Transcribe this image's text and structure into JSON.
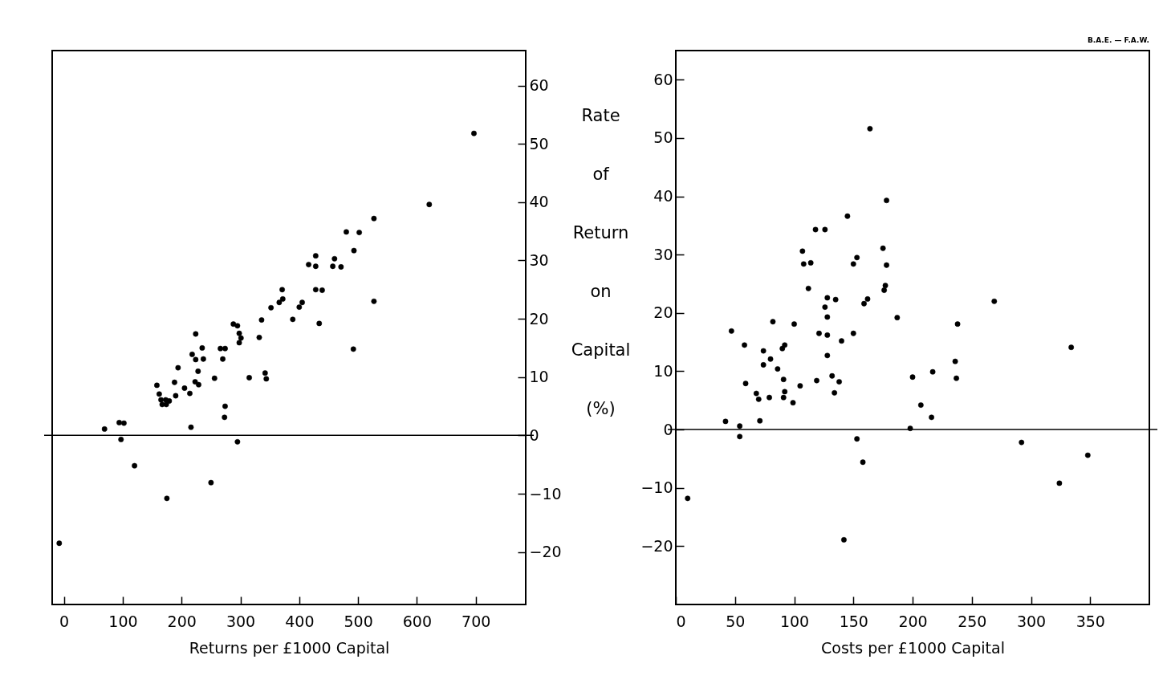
{
  "chart_data": [
    {
      "type": "scatter",
      "xlabel": "Returns per £1000 Capital",
      "ylabel": "Rate of Return on Capital (%)",
      "color": "#000000",
      "marker": "circle",
      "grid": false,
      "x": [
        -8,
        69,
        94,
        102,
        97,
        120,
        175,
        250,
        216,
        158,
        162,
        165,
        173,
        179,
        167,
        174,
        188,
        190,
        194,
        205,
        214,
        223,
        229,
        228,
        224,
        218,
        237,
        235,
        224,
        256,
        273,
        274,
        270,
        266,
        274,
        295,
        288,
        295,
        298,
        301,
        298,
        315,
        332,
        336,
        342,
        344,
        352,
        366,
        371,
        372,
        389,
        400,
        405,
        416,
        428,
        428,
        428,
        439,
        434,
        457,
        460,
        471,
        480,
        502,
        493,
        492,
        527,
        527,
        621,
        697
      ],
      "values": [
        -18.5,
        1.1,
        2.2,
        2.1,
        -0.7,
        -5.2,
        -10.8,
        -8.1,
        1.4,
        8.6,
        7.1,
        6.1,
        6.1,
        5.9,
        5.3,
        5.3,
        9.1,
        6.8,
        11.6,
        8.1,
        7.2,
        9.2,
        8.7,
        11.0,
        13.0,
        13.9,
        13.1,
        15.0,
        17.4,
        9.8,
        3.1,
        5.0,
        13.1,
        14.9,
        14.9,
        -1.1,
        19.1,
        18.8,
        17.5,
        16.7,
        15.9,
        9.9,
        16.8,
        19.8,
        10.7,
        9.7,
        21.9,
        22.8,
        25.0,
        23.4,
        19.9,
        22.0,
        22.8,
        29.3,
        30.8,
        29.0,
        25.0,
        24.9,
        19.2,
        29.0,
        30.3,
        28.9,
        34.9,
        34.8,
        31.7,
        14.8,
        37.2,
        23.0,
        39.6,
        51.8
      ],
      "xlim": [
        -20,
        785
      ],
      "xticks": [
        0,
        100,
        200,
        300,
        400,
        500,
        600,
        700
      ],
      "ylim": [
        -29,
        66
      ],
      "yticks": [
        -20,
        -10,
        0,
        10,
        20,
        30,
        40,
        50,
        60
      ],
      "ref_lines": [
        {
          "axis": "y",
          "value": 0
        }
      ]
    },
    {
      "type": "scatter",
      "xlabel": "Costs per £1000 Capital",
      "annotations": [
        "B.A.E. — F.A.W."
      ],
      "color": "#000000",
      "marker": "circle",
      "grid": false,
      "x": [
        10,
        42,
        54,
        54,
        47,
        58,
        59,
        68,
        70,
        71,
        74,
        74,
        79,
        80,
        82,
        86,
        90,
        92,
        91,
        92,
        91,
        99,
        100,
        105,
        107,
        108,
        114,
        112,
        118,
        126,
        119,
        121,
        126,
        128,
        128,
        128,
        128,
        132,
        134,
        135,
        138,
        140,
        142,
        145,
        150,
        153,
        150,
        153,
        158,
        159,
        162,
        164,
        175,
        178,
        177,
        176,
        178,
        187,
        200,
        198,
        207,
        217,
        216,
        236,
        237,
        238,
        269,
        292,
        324,
        334,
        348
      ],
      "values": [
        -11.8,
        1.4,
        0.6,
        -1.2,
        16.9,
        14.5,
        7.9,
        6.2,
        5.2,
        1.5,
        13.5,
        11.1,
        5.5,
        12.1,
        18.5,
        10.4,
        13.9,
        14.5,
        8.6,
        6.5,
        5.5,
        4.6,
        18.1,
        7.5,
        30.6,
        28.4,
        28.6,
        24.2,
        34.3,
        34.3,
        8.4,
        16.5,
        21.0,
        22.6,
        19.3,
        16.2,
        12.7,
        9.2,
        6.3,
        22.3,
        8.2,
        15.2,
        -18.9,
        36.6,
        28.4,
        29.5,
        16.5,
        -1.6,
        -5.6,
        21.6,
        22.4,
        51.6,
        31.1,
        28.2,
        24.7,
        23.9,
        39.3,
        19.2,
        9.0,
        0.2,
        4.2,
        9.9,
        2.1,
        11.7,
        8.8,
        18.1,
        22.0,
        -2.2,
        -9.2,
        14.1,
        -4.4
      ],
      "xlim": [
        0,
        400
      ],
      "xticks": [
        0,
        50,
        100,
        150,
        200,
        250,
        300,
        350
      ],
      "ylim": [
        -30,
        65
      ],
      "yticks": [
        -20,
        -10,
        0,
        10,
        20,
        30,
        40,
        50,
        60
      ],
      "ref_lines": [
        {
          "axis": "y",
          "value": 0
        }
      ]
    }
  ]
}
